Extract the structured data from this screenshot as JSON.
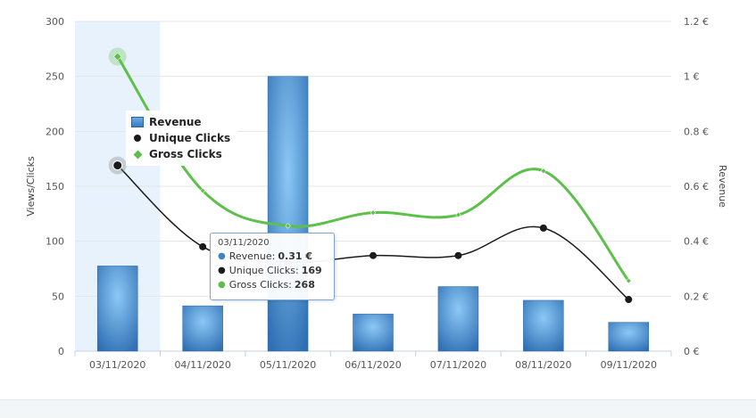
{
  "chart_data": {
    "type": "bar",
    "categories": [
      "03/11/2020",
      "04/11/2020",
      "05/11/2020",
      "06/11/2020",
      "07/11/2020",
      "08/11/2020",
      "09/11/2020"
    ],
    "ylabel": "Views/Clicks",
    "y2label": "Revenue",
    "ylim": [
      0,
      300
    ],
    "y2lim": [
      0,
      1.2
    ],
    "yticks": [
      "0",
      "50",
      "100",
      "150",
      "200",
      "250",
      "300"
    ],
    "y2ticks": [
      "0 €",
      "0.2 €",
      "0.4 €",
      "0.6 €",
      "0.8 €",
      "1 €",
      "1.2 €"
    ],
    "grid": true,
    "highlighted_category": "03/11/2020",
    "series": [
      {
        "name": "Revenue",
        "kind": "bar",
        "axis": "right",
        "color": "#3f82c8",
        "values": [
          0.31,
          0.165,
          1.0,
          0.135,
          0.235,
          0.185,
          0.105
        ]
      },
      {
        "name": "Unique Clicks",
        "kind": "line",
        "axis": "left",
        "color": "#1a1a1a",
        "values": [
          169,
          95,
          81,
          87,
          87,
          112,
          47
        ]
      },
      {
        "name": "Gross Clicks",
        "kind": "line",
        "axis": "left",
        "color": "#5cc04a",
        "values": [
          268,
          146,
          114,
          126,
          124,
          164,
          64
        ]
      }
    ]
  },
  "legend": {
    "items": [
      {
        "label": "Revenue",
        "symbol": "bar"
      },
      {
        "label": "Unique Clicks",
        "symbol": "dot"
      },
      {
        "label": "Gross Clicks",
        "symbol": "diamond"
      }
    ]
  },
  "tooltip": {
    "date": "03/11/2020",
    "rows": [
      {
        "label": "Revenue:",
        "value": "0.31 €",
        "color": "#3f82c8"
      },
      {
        "label": "Unique Clicks:",
        "value": "169",
        "color": "#1a1a1a"
      },
      {
        "label": "Gross Clicks:",
        "value": "268",
        "color": "#5cc04a"
      }
    ]
  }
}
